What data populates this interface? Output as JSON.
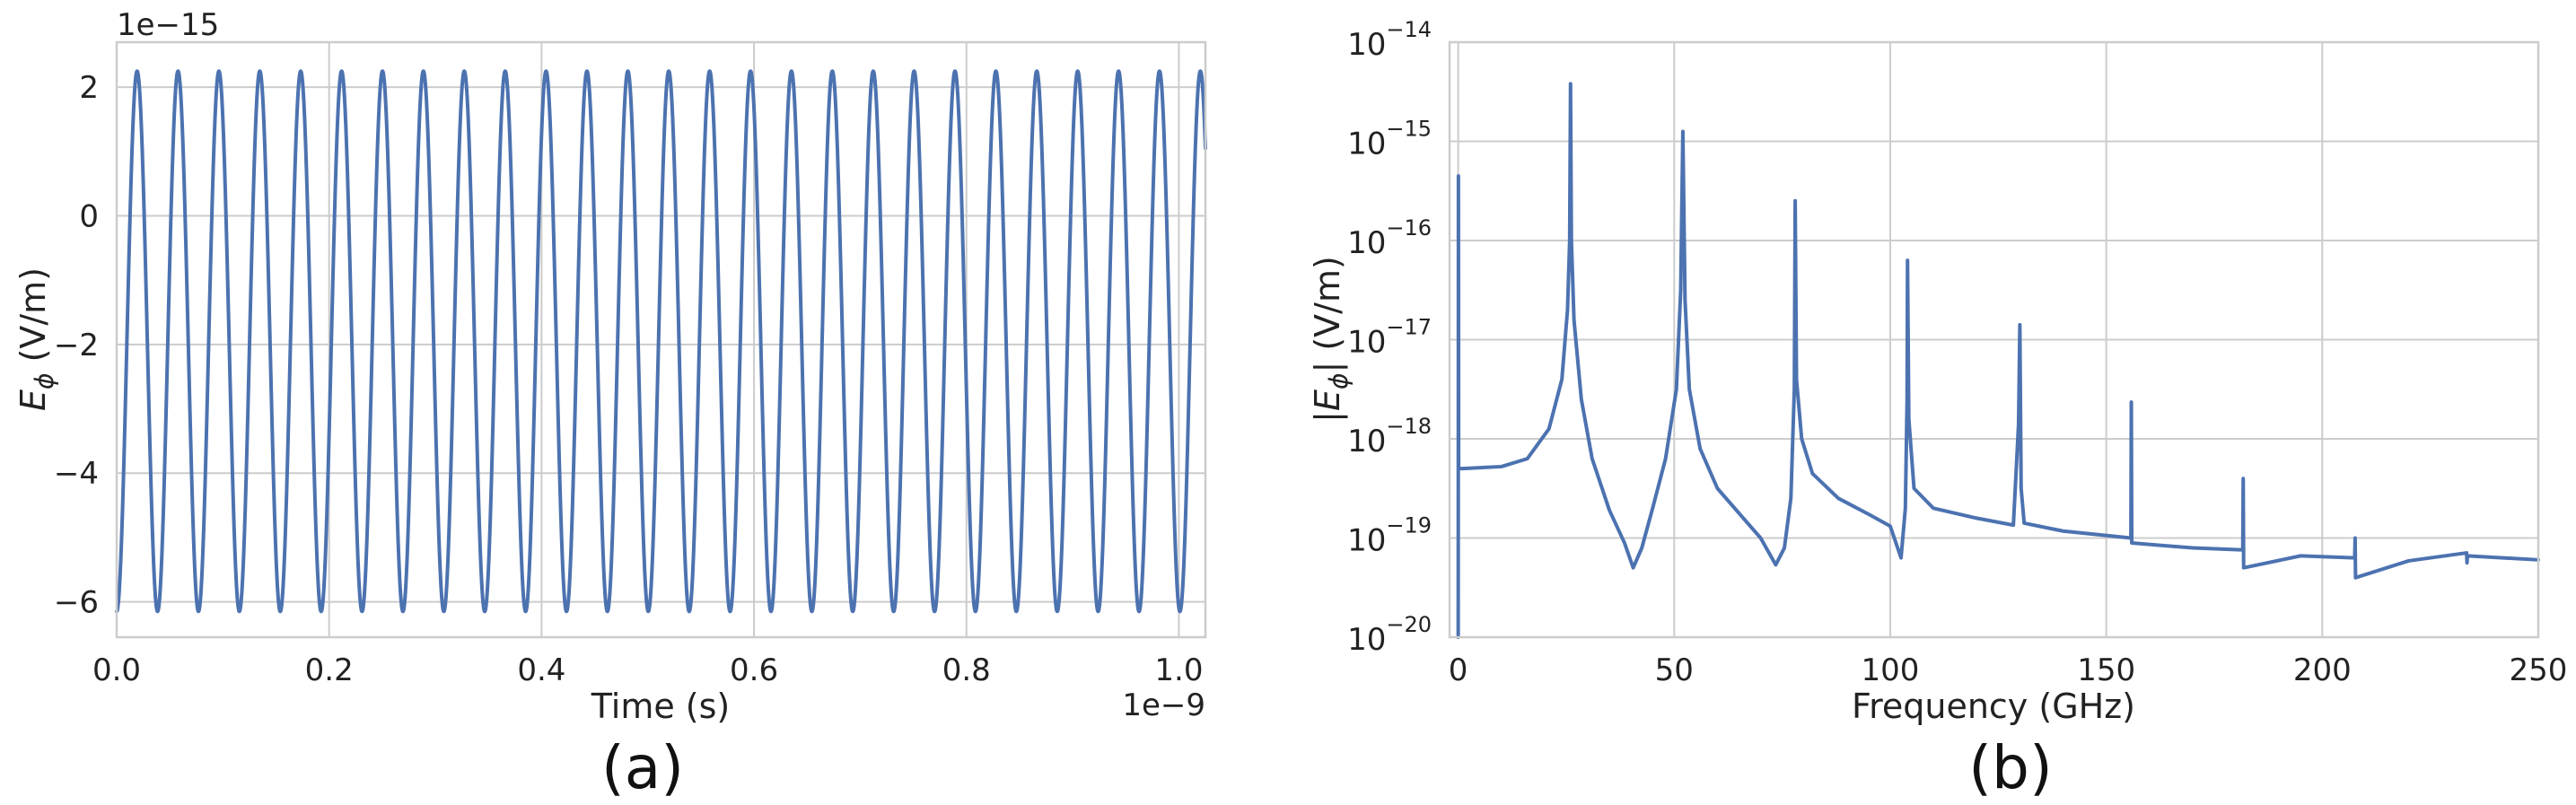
{
  "chart_data": [
    {
      "id": "a",
      "type": "line",
      "caption": "(a)",
      "xlabel": "Time (s)",
      "ylabel_main": "E",
      "ylabel_sub": "ϕ",
      "ylabel_unit": " (V/m)",
      "x_offset_text": "1e−9",
      "y_offset_text": "1e−15",
      "xlim": [
        0,
        1.025
      ],
      "ylim": [
        -6.55,
        2.7
      ],
      "xticks": [
        {
          "v": 0.0,
          "label": "0.0"
        },
        {
          "v": 0.2,
          "label": "0.2"
        },
        {
          "v": 0.4,
          "label": "0.4"
        },
        {
          "v": 0.6,
          "label": "0.6"
        },
        {
          "v": 0.8,
          "label": "0.8"
        },
        {
          "v": 1.0,
          "label": "1.0"
        }
      ],
      "yticks": [
        {
          "v": 2,
          "label": "2"
        },
        {
          "v": 0,
          "label": "0"
        },
        {
          "v": -2,
          "label": "−2"
        },
        {
          "v": -4,
          "label": "−4"
        },
        {
          "v": -6,
          "label": "−6"
        }
      ],
      "grid": true,
      "series": [
        {
          "color": "#4c72b0",
          "period": 0.0385,
          "x_start": 0.0,
          "x_end": 1.025,
          "y_max": 2.25,
          "y_min": -6.15,
          "first_value": -6.15
        }
      ]
    },
    {
      "id": "b",
      "type": "line",
      "caption": "(b)",
      "xlabel": "Frequency (GHz)",
      "ylabel_main": "|E",
      "ylabel_sub": "ϕ",
      "ylabel_unit": "| (V/m)",
      "xlim": [
        -2,
        250
      ],
      "ylim_log10": [
        -20,
        -14
      ],
      "yscale": "log",
      "xticks": [
        {
          "v": 0,
          "label": "0"
        },
        {
          "v": 50,
          "label": "50"
        },
        {
          "v": 100,
          "label": "100"
        },
        {
          "v": 150,
          "label": "150"
        },
        {
          "v": 200,
          "label": "200"
        },
        {
          "v": 250,
          "label": "250"
        }
      ],
      "yticks": [
        {
          "exp": -14,
          "base": "10",
          "sup": "−14"
        },
        {
          "exp": -15,
          "base": "10",
          "sup": "−15"
        },
        {
          "exp": -16,
          "base": "10",
          "sup": "−16"
        },
        {
          "exp": -17,
          "base": "10",
          "sup": "−17"
        },
        {
          "exp": -18,
          "base": "10",
          "sup": "−18"
        },
        {
          "exp": -19,
          "base": "10",
          "sup": "−19"
        },
        {
          "exp": -20,
          "base": "10",
          "sup": "−20"
        }
      ],
      "grid": true,
      "series": [
        {
          "color": "#4c72b0",
          "points": [
            [
              0.0,
              -20.0
            ],
            [
              0.05,
              -15.35
            ],
            [
              0.1,
              -18.3
            ],
            [
              1.0,
              -18.3
            ],
            [
              10.0,
              -18.28
            ],
            [
              16.0,
              -18.2
            ],
            [
              21.0,
              -17.9
            ],
            [
              24.0,
              -17.4
            ],
            [
              25.3,
              -16.7
            ],
            [
              25.8,
              -16.0
            ],
            [
              26.0,
              -14.42
            ],
            [
              26.2,
              -16.0
            ],
            [
              26.8,
              -16.8
            ],
            [
              28.5,
              -17.6
            ],
            [
              31.0,
              -18.2
            ],
            [
              35.0,
              -18.72
            ],
            [
              38.5,
              -19.05
            ],
            [
              40.5,
              -19.3
            ],
            [
              42.5,
              -19.1
            ],
            [
              45.0,
              -18.7
            ],
            [
              48.0,
              -18.2
            ],
            [
              50.5,
              -17.5
            ],
            [
              51.5,
              -16.5
            ],
            [
              52.0,
              -14.9
            ],
            [
              52.5,
              -16.6
            ],
            [
              53.5,
              -17.5
            ],
            [
              56.0,
              -18.1
            ],
            [
              60.0,
              -18.5
            ],
            [
              66.0,
              -18.8
            ],
            [
              70.0,
              -19.0
            ],
            [
              73.5,
              -19.27
            ],
            [
              75.5,
              -19.1
            ],
            [
              77.0,
              -18.6
            ],
            [
              77.8,
              -17.5
            ],
            [
              78.0,
              -15.6
            ],
            [
              78.3,
              -17.4
            ],
            [
              79.5,
              -18.0
            ],
            [
              82.0,
              -18.35
            ],
            [
              88.0,
              -18.6
            ],
            [
              95.0,
              -18.76
            ],
            [
              100.0,
              -18.88
            ],
            [
              102.5,
              -19.2
            ],
            [
              103.5,
              -18.7
            ],
            [
              103.9,
              -17.6
            ],
            [
              104.0,
              -16.2
            ],
            [
              104.3,
              -17.8
            ],
            [
              105.5,
              -18.5
            ],
            [
              110.0,
              -18.7
            ],
            [
              120.0,
              -18.8
            ],
            [
              128.5,
              -18.87
            ],
            [
              129.7,
              -17.85
            ],
            [
              130.0,
              -16.85
            ],
            [
              130.3,
              -18.5
            ],
            [
              131.0,
              -18.85
            ],
            [
              140.0,
              -18.93
            ],
            [
              155.7,
              -19.0
            ],
            [
              155.8,
              -17.63
            ],
            [
              155.9,
              -19.05
            ],
            [
              170.0,
              -19.1
            ],
            [
              181.6,
              -19.12
            ],
            [
              181.7,
              -18.4
            ],
            [
              181.8,
              -19.3
            ],
            [
              195.0,
              -19.18
            ],
            [
              207.5,
              -19.2
            ],
            [
              207.6,
              -19.0
            ],
            [
              207.7,
              -19.4
            ],
            [
              220.0,
              -19.23
            ],
            [
              233.4,
              -19.15
            ],
            [
              233.5,
              -19.25
            ],
            [
              233.6,
              -19.18
            ],
            [
              250.0,
              -19.22
            ]
          ]
        }
      ]
    }
  ]
}
